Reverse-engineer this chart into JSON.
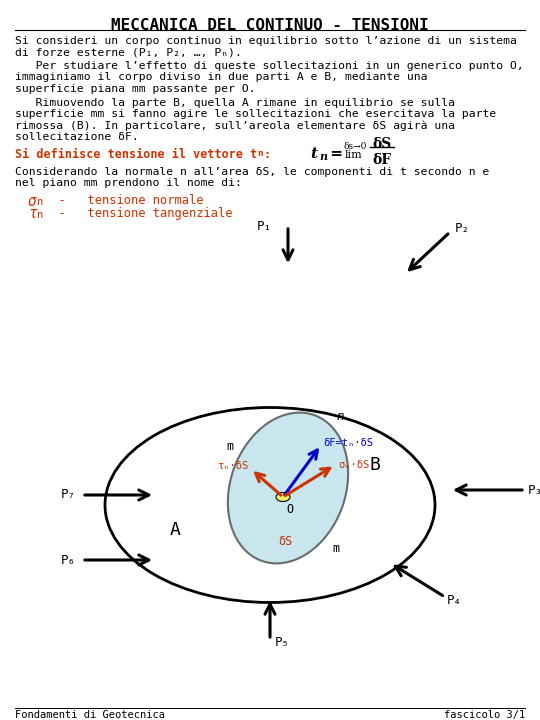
{
  "title": "MECCANICA DEL CONTINUO - TENSIONI",
  "bg_color": "#ffffff",
  "text_color": "#000000",
  "orange_color": "#cc3300",
  "blue_color": "#0000cc",
  "footer_left": "Fondamenti di Geotecnica",
  "footer_right": "fascicolo 3/1"
}
